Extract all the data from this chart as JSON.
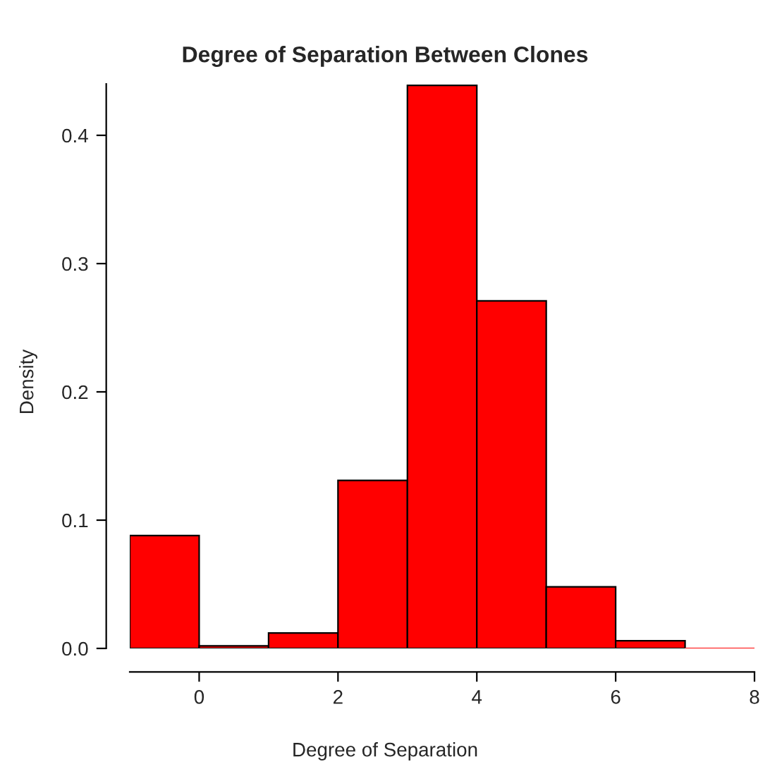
{
  "chart_data": {
    "type": "histogram",
    "title": "Degree of Separation Between Clones",
    "xlabel": "Degree of Separation",
    "ylabel": "Density",
    "bins": [
      -1,
      0,
      1,
      2,
      3,
      4,
      5,
      6,
      7,
      8
    ],
    "values": [
      0.088,
      0.002,
      0.012,
      0.131,
      0.439,
      0.271,
      0.048,
      0.006,
      0.0
    ],
    "color": "#ff0000",
    "xlim": [
      -1,
      8
    ],
    "ylim": [
      0,
      0.44
    ],
    "xticks": [
      0,
      2,
      4,
      6,
      8
    ],
    "yticks": [
      {
        "value": 0,
        "label": "0.0"
      },
      0.1,
      0.2,
      0.3,
      0.4
    ],
    "grid": false
  }
}
